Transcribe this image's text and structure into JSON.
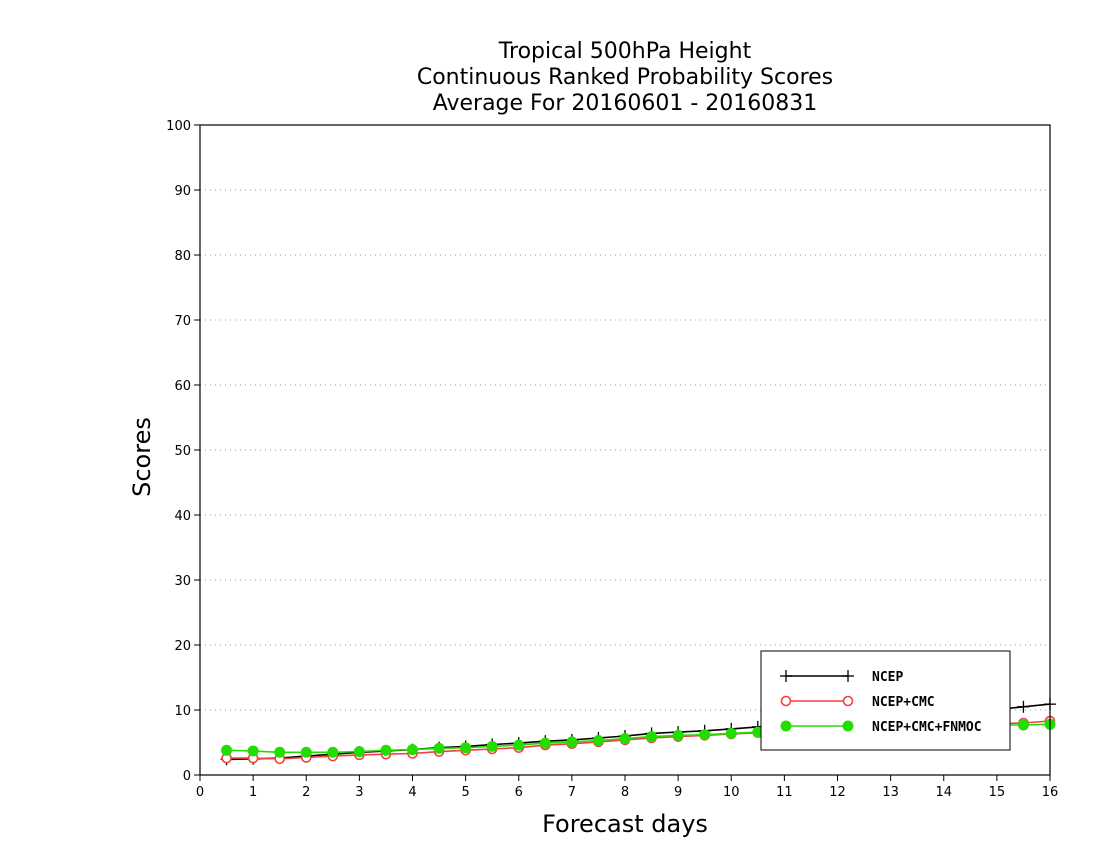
{
  "chart_data": {
    "type": "line",
    "title": [
      "Tropical 500hPa Height",
      "Continuous Ranked Probability Scores",
      "Average For 20160601 - 20160831"
    ],
    "xlabel": "Forecast days",
    "ylabel": "Scores",
    "xlim": [
      0,
      16
    ],
    "ylim": [
      0,
      100
    ],
    "x_ticks": [
      0,
      1,
      2,
      3,
      4,
      5,
      6,
      7,
      8,
      9,
      10,
      11,
      12,
      13,
      14,
      15,
      16
    ],
    "y_ticks": [
      0,
      10,
      20,
      30,
      40,
      50,
      60,
      70,
      80,
      90,
      100
    ],
    "grid": "horizontal-dotted",
    "legend_position": "lower-right",
    "x": [
      0.5,
      1.0,
      1.5,
      2.0,
      2.5,
      3.0,
      3.5,
      4.0,
      4.5,
      5.0,
      5.5,
      6.0,
      6.5,
      7.0,
      7.5,
      8.0,
      8.5,
      9.0,
      9.5,
      10.0,
      10.5,
      11.0,
      11.5,
      12.0,
      12.5,
      13.0,
      13.5,
      14.0,
      14.5,
      15.0,
      15.5,
      16.0
    ],
    "series": [
      {
        "name": "NCEP",
        "color": "#000000",
        "marker": "plus",
        "values": [
          2.4,
          2.5,
          2.6,
          2.9,
          3.2,
          3.5,
          3.7,
          3.9,
          4.2,
          4.4,
          4.7,
          4.9,
          5.2,
          5.4,
          5.7,
          6.0,
          6.4,
          6.6,
          6.8,
          7.1,
          7.4,
          7.7,
          8.0,
          8.3,
          8.6,
          8.9,
          9.2,
          9.5,
          9.8,
          10.1,
          10.5,
          10.9
        ]
      },
      {
        "name": "NCEP+CMC",
        "color": "#f04040",
        "marker": "open-circle",
        "values": [
          2.6,
          2.6,
          2.5,
          2.7,
          2.9,
          3.1,
          3.2,
          3.3,
          3.6,
          3.8,
          4.0,
          4.2,
          4.6,
          4.8,
          5.1,
          5.4,
          5.7,
          5.9,
          6.1,
          6.3,
          6.5,
          6.7,
          6.8,
          7.0,
          7.2,
          7.4,
          7.5,
          7.7,
          7.8,
          7.9,
          8.0,
          8.3
        ]
      },
      {
        "name": "NCEP+CMC+FNMOC",
        "color": "#22dd00",
        "marker": "filled-circle",
        "values": [
          3.8,
          3.7,
          3.5,
          3.5,
          3.5,
          3.6,
          3.8,
          3.9,
          4.1,
          4.2,
          4.4,
          4.6,
          4.9,
          5.1,
          5.3,
          5.6,
          5.9,
          6.1,
          6.2,
          6.4,
          6.6,
          6.8,
          6.9,
          7.1,
          7.2,
          7.3,
          7.4,
          7.5,
          7.6,
          7.7,
          7.7,
          7.8
        ]
      }
    ]
  }
}
